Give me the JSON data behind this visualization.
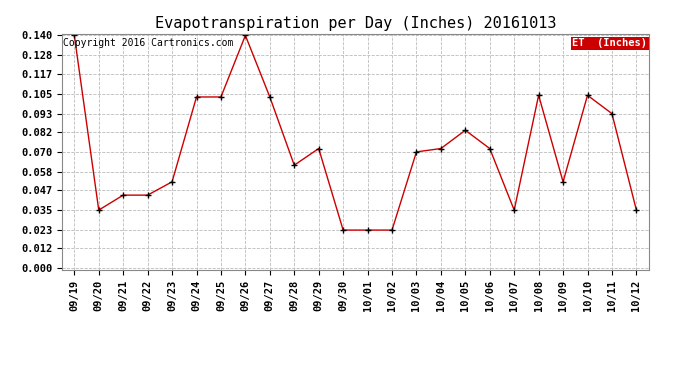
{
  "title": "Evapotranspiration per Day (Inches) 20161013",
  "copyright_text": "Copyright 2016 Cartronics.com",
  "legend_label": "ET  (Inches)",
  "legend_bg": "#cc0000",
  "legend_text_color": "#ffffff",
  "x_labels": [
    "09/19",
    "09/20",
    "09/21",
    "09/22",
    "09/23",
    "09/24",
    "09/25",
    "09/26",
    "09/27",
    "09/28",
    "09/29",
    "09/30",
    "10/01",
    "10/02",
    "10/03",
    "10/04",
    "10/05",
    "10/06",
    "10/07",
    "10/08",
    "10/09",
    "10/10",
    "10/11",
    "10/12"
  ],
  "y_values": [
    0.14,
    0.035,
    0.044,
    0.044,
    0.052,
    0.103,
    0.103,
    0.14,
    0.103,
    0.062,
    0.072,
    0.023,
    0.023,
    0.023,
    0.07,
    0.072,
    0.083,
    0.072,
    0.035,
    0.104,
    0.052,
    0.104,
    0.093,
    0.035
  ],
  "y_min": 0.0,
  "y_max": 0.14,
  "y_ticks": [
    0.0,
    0.012,
    0.023,
    0.035,
    0.047,
    0.058,
    0.07,
    0.082,
    0.093,
    0.105,
    0.117,
    0.128,
    0.14
  ],
  "line_color": "#cc0000",
  "marker": "+",
  "marker_color": "#000000",
  "grid_color": "#bbbbbb",
  "bg_color": "#ffffff",
  "title_fontsize": 11,
  "tick_fontsize": 7.5,
  "copyright_fontsize": 7
}
